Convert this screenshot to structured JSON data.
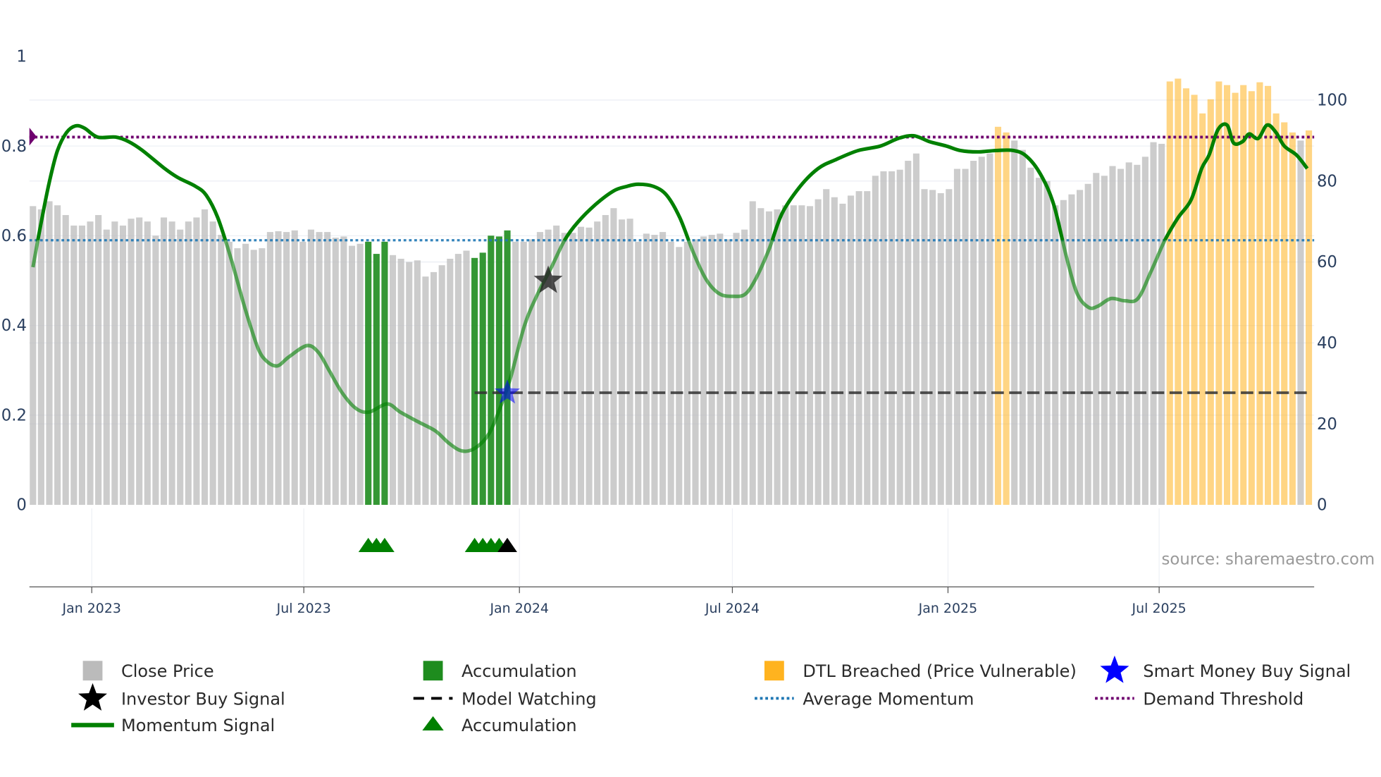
{
  "chart_data": {
    "type": "bar",
    "title": "",
    "source": "source: sharemaestro.com",
    "left_axis": {
      "ticks": [
        "0",
        "0.2",
        "0.4",
        "0.6",
        "0.8",
        "1"
      ],
      "range": [
        0,
        1
      ]
    },
    "right_axis": {
      "ticks": [
        "0",
        "20",
        "40",
        "60",
        "80",
        "100"
      ],
      "range": [
        0,
        111
      ]
    },
    "x_ticks": [
      "Jan 2023",
      "Jul 2023",
      "Jan 2024",
      "Jul 2024",
      "Jan 2025",
      "Jul 2025"
    ],
    "frequency": "weekly",
    "close_price": [
      73.8,
      73,
      75,
      74,
      71.6,
      69,
      69,
      70,
      71.6,
      68,
      70,
      69,
      70.7,
      71,
      70,
      66.5,
      71,
      70,
      68,
      70,
      71,
      73,
      70,
      66.7,
      65,
      63.4,
      64.5,
      63,
      63.4,
      67.4,
      67.6,
      67.4,
      67.8,
      65,
      68,
      67.4,
      67.4,
      66,
      66.3,
      64,
      64.5,
      65,
      62,
      65,
      61.7,
      60.8,
      60,
      60.4,
      56.4,
      57.5,
      59.2,
      60.8,
      62,
      62.8,
      61,
      62.3,
      66.5,
      66.3,
      67.8,
      65,
      65,
      65.6,
      67.4,
      68,
      69,
      67.2,
      67.2,
      68.7,
      68.5,
      70,
      71.6,
      73.3,
      70.5,
      70.7,
      65,
      67,
      66.7,
      67.4,
      65,
      63.7,
      65,
      65.6,
      66.3,
      66.7,
      67,
      65.6,
      67.2,
      68,
      75,
      73.3,
      72.5,
      73,
      74,
      74,
      74,
      73.8,
      75.5,
      78,
      76,
      74.4,
      76.4,
      77.5,
      77.5,
      81.3,
      82.4,
      82.4,
      82.8,
      85,
      86.8,
      78,
      77.8,
      77,
      78,
      83,
      83,
      85,
      86,
      86.8,
      93.4,
      92,
      90,
      87.7,
      83.3,
      80.8,
      80,
      74,
      75.3,
      76.7,
      77.8,
      79.3,
      82,
      81.3,
      83.7,
      83,
      84.6,
      84,
      86,
      89.6,
      89.2,
      104.6,
      105.3,
      102.9,
      101.3,
      96.7,
      100.2,
      104.6,
      103.7,
      101.8,
      103.7,
      102.2,
      104.4,
      103.5,
      96.7,
      94.5,
      92,
      90,
      92.5
    ],
    "accumulation_weeks": [
      41,
      42,
      43,
      54,
      55,
      56,
      57,
      58
    ],
    "dtl_breached_weeks": [
      118,
      119,
      139,
      140,
      141,
      142,
      143,
      144,
      145,
      146,
      147,
      148,
      149,
      150,
      151,
      152,
      153,
      154,
      156
    ],
    "momentum_signal": [
      [
        0,
        0.53
      ],
      [
        0.9,
        0.62
      ],
      [
        2,
        0.72
      ],
      [
        3,
        0.79
      ],
      [
        4.1,
        0.83
      ],
      [
        5.2,
        0.845
      ],
      [
        6.3,
        0.84
      ],
      [
        7.9,
        0.82
      ],
      [
        10.1,
        0.82
      ],
      [
        11.7,
        0.81
      ],
      [
        13.4,
        0.79
      ],
      [
        16.1,
        0.75
      ],
      [
        17.7,
        0.73
      ],
      [
        19.9,
        0.71
      ],
      [
        21.2,
        0.69
      ],
      [
        22.6,
        0.64
      ],
      [
        24.2,
        0.55
      ],
      [
        25.9,
        0.44
      ],
      [
        27.5,
        0.35
      ],
      [
        28.6,
        0.32
      ],
      [
        29.9,
        0.31
      ],
      [
        31.3,
        0.33
      ],
      [
        33.5,
        0.355
      ],
      [
        34.9,
        0.34
      ],
      [
        36.2,
        0.3
      ],
      [
        37.8,
        0.25
      ],
      [
        39.5,
        0.215
      ],
      [
        41.1,
        0.207
      ],
      [
        43.3,
        0.225
      ],
      [
        44.9,
        0.207
      ],
      [
        47.1,
        0.185
      ],
      [
        49.2,
        0.165
      ],
      [
        50.9,
        0.137
      ],
      [
        52.5,
        0.12
      ],
      [
        54.1,
        0.127
      ],
      [
        55.8,
        0.16
      ],
      [
        57.4,
        0.23
      ],
      [
        58.5,
        0.29
      ],
      [
        60.1,
        0.4
      ],
      [
        61.7,
        0.47
      ],
      [
        63.4,
        0.53
      ],
      [
        65,
        0.59
      ],
      [
        66.6,
        0.63
      ],
      [
        68.8,
        0.67
      ],
      [
        71,
        0.7
      ],
      [
        72.6,
        0.71
      ],
      [
        74,
        0.715
      ],
      [
        75.9,
        0.71
      ],
      [
        77.5,
        0.69
      ],
      [
        79.1,
        0.64
      ],
      [
        80.8,
        0.56
      ],
      [
        82.4,
        0.5
      ],
      [
        84,
        0.47
      ],
      [
        85.7,
        0.465
      ],
      [
        87.1,
        0.47
      ],
      [
        88.4,
        0.505
      ],
      [
        90,
        0.57
      ],
      [
        91.6,
        0.65
      ],
      [
        93.8,
        0.71
      ],
      [
        96,
        0.75
      ],
      [
        98.2,
        0.77
      ],
      [
        100.9,
        0.79
      ],
      [
        103.6,
        0.8
      ],
      [
        105.8,
        0.817
      ],
      [
        107.7,
        0.823
      ],
      [
        109.6,
        0.81
      ],
      [
        111.7,
        0.8
      ],
      [
        113.4,
        0.79
      ],
      [
        115.5,
        0.787
      ],
      [
        117.7,
        0.79
      ],
      [
        119.9,
        0.79
      ],
      [
        121.5,
        0.777
      ],
      [
        123.2,
        0.737
      ],
      [
        124.8,
        0.67
      ],
      [
        126.4,
        0.55
      ],
      [
        127.7,
        0.47
      ],
      [
        129.1,
        0.44
      ],
      [
        130.2,
        0.443
      ],
      [
        131.8,
        0.46
      ],
      [
        133.5,
        0.455
      ],
      [
        135.1,
        0.46
      ],
      [
        136.7,
        0.52
      ],
      [
        138.4,
        0.59
      ],
      [
        140,
        0.64
      ],
      [
        141.6,
        0.68
      ],
      [
        142.9,
        0.75
      ],
      [
        143.8,
        0.78
      ],
      [
        144.9,
        0.837
      ],
      [
        146,
        0.847
      ],
      [
        146.8,
        0.807
      ],
      [
        147.9,
        0.81
      ],
      [
        148.7,
        0.827
      ],
      [
        149.8,
        0.817
      ],
      [
        150.9,
        0.847
      ],
      [
        152,
        0.83
      ],
      [
        153,
        0.8
      ],
      [
        154.5,
        0.78
      ],
      [
        155.8,
        0.75
      ]
    ],
    "average_momentum": 0.59,
    "demand_threshold": 0.82,
    "model_watching": {
      "from_week": 54,
      "value": 0.25
    },
    "investor_buy_signal": {
      "week": 63,
      "value": 0.5
    },
    "smart_money_buy_signal": {
      "week": 58,
      "value": 0.25
    },
    "accumulation_triangles": [
      41,
      42,
      43,
      54,
      55,
      56,
      57
    ],
    "black_triangle_week": 58,
    "colors": {
      "close": "#bbbbbb",
      "accumulation": "#1e8c1e",
      "dtl": "#ffb31f",
      "momentum": "#008000",
      "avg": "#1f77b4",
      "threshold": "#6f006f",
      "watching": "#333333",
      "smart": "#0000ff"
    },
    "legend": [
      {
        "label": "Close Price",
        "marker": "square-gray"
      },
      {
        "label": "Accumulation",
        "marker": "square-green"
      },
      {
        "label": "DTL Breached (Price Vulnerable)",
        "marker": "square-orange"
      },
      {
        "label": "Smart Money Buy Signal",
        "marker": "star-blue"
      },
      {
        "label": "Investor Buy Signal",
        "marker": "star-black"
      },
      {
        "label": "Model Watching",
        "marker": "dash-black"
      },
      {
        "label": "Average Momentum",
        "marker": "dot-blue"
      },
      {
        "label": "Demand Threshold",
        "marker": "dot-purple"
      },
      {
        "label": "Momentum Signal",
        "marker": "line-green"
      },
      {
        "label": "Accumulation",
        "marker": "triangle-green"
      }
    ]
  }
}
